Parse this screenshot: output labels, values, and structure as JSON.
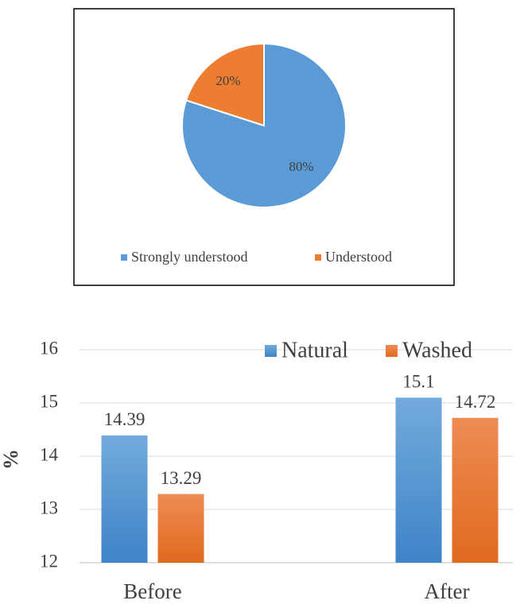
{
  "chart_data": [
    {
      "type": "pie",
      "categories": [
        "Strongly understood",
        "Understood"
      ],
      "values": [
        80,
        20
      ],
      "labels": [
        "80%",
        "20%"
      ],
      "colors": [
        "#5B9BD5",
        "#ED7D31"
      ],
      "legend": "bottom"
    },
    {
      "type": "bar",
      "categories": [
        "Before",
        "After"
      ],
      "series": [
        {
          "name": "Natural",
          "values": [
            14.39,
            15.1
          ],
          "labels": [
            "14.39",
            "15.1"
          ],
          "color": "#5B9BD5"
        },
        {
          "name": "Washed",
          "values": [
            13.29,
            14.72
          ],
          "labels": [
            "13.29",
            "14.72"
          ],
          "color": "#ED7D31"
        }
      ],
      "ylabel": "%",
      "ylim": [
        12,
        16
      ],
      "yticks": [
        12,
        13,
        14,
        15,
        16
      ],
      "grid": true,
      "legend": "top-right"
    }
  ]
}
